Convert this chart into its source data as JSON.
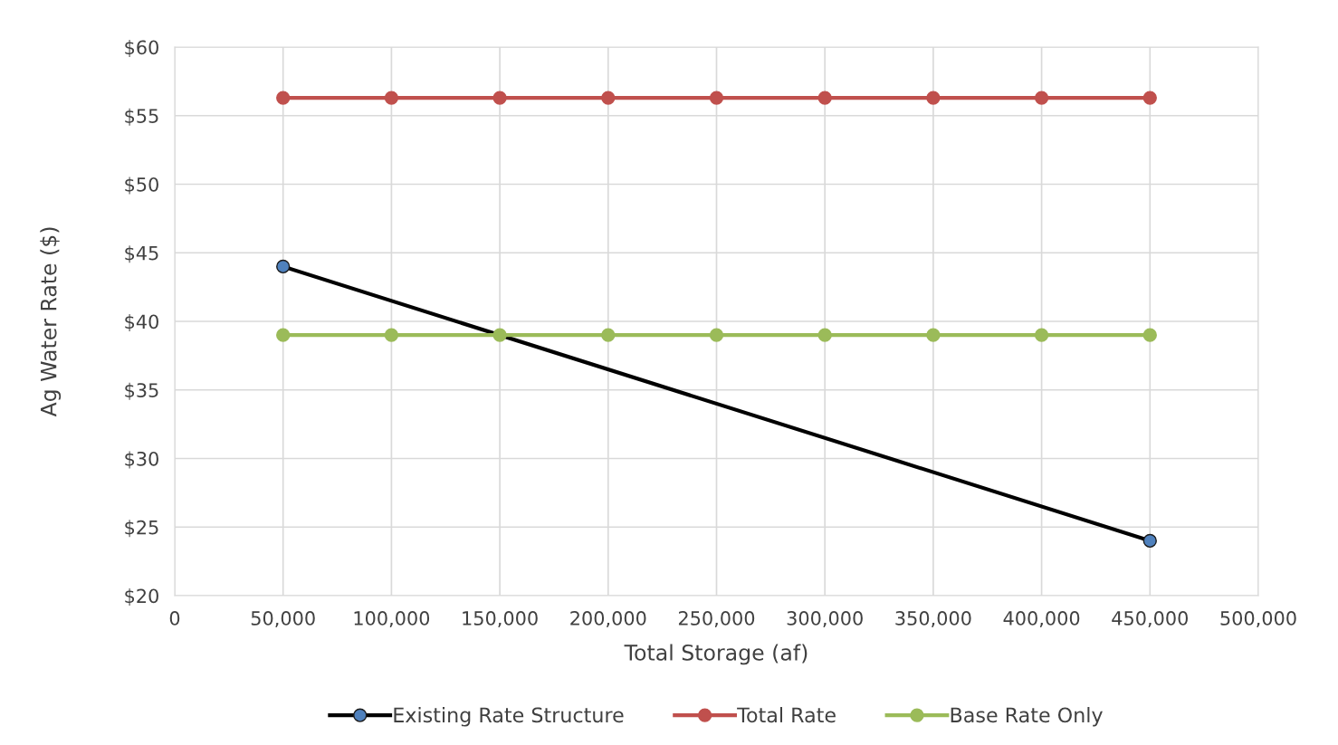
{
  "chart_data": {
    "type": "line",
    "xlabel": "Total Storage (af)",
    "ylabel": "Ag Water Rate ($)",
    "xlim": [
      0,
      500000
    ],
    "xticks": [
      0,
      {
        "value": 50000,
        "label": "50,000"
      },
      {
        "value": 100000,
        "label": "100,000"
      },
      {
        "value": 150000,
        "label": "150,000"
      },
      {
        "value": 200000,
        "label": "200,000"
      },
      {
        "value": 250000,
        "label": "250,000"
      },
      {
        "value": 300000,
        "label": "300,000"
      },
      {
        "value": 350000,
        "label": "350,000"
      },
      {
        "value": 400000,
        "label": "400,000"
      },
      {
        "value": 450000,
        "label": "450,000"
      },
      {
        "value": 500000,
        "label": "500,000"
      }
    ],
    "ylim": [
      20,
      60
    ],
    "yticks": [
      {
        "value": 20,
        "label": "$20"
      },
      {
        "value": 25,
        "label": "$25"
      },
      {
        "value": 30,
        "label": "$30"
      },
      {
        "value": 35,
        "label": "$35"
      },
      {
        "value": 40,
        "label": "$40"
      },
      {
        "value": 45,
        "label": "$45"
      },
      {
        "value": 50,
        "label": "$50"
      },
      {
        "value": 55,
        "label": "$55"
      },
      {
        "value": 60,
        "label": "$60"
      }
    ],
    "grid": true,
    "legend": "bottom",
    "marker": "circle",
    "line_style": "solid",
    "series": [
      {
        "name": "Existing Rate Structure",
        "color": "#000000",
        "x": [
          50000,
          450000
        ],
        "values": [
          44,
          24
        ]
      },
      {
        "name": "Total Rate",
        "color": "#c0504d",
        "x": [
          50000,
          100000,
          150000,
          200000,
          250000,
          300000,
          350000,
          400000,
          450000
        ],
        "values": [
          56.3,
          56.3,
          56.3,
          56.3,
          56.3,
          56.3,
          56.3,
          56.3,
          56.3
        ]
      },
      {
        "name": "Base Rate Only",
        "color": "#9bbb59",
        "x": [
          50000,
          100000,
          150000,
          200000,
          250000,
          300000,
          350000,
          400000,
          450000
        ],
        "values": [
          39,
          39,
          39,
          39,
          39,
          39,
          39,
          39,
          39
        ]
      }
    ]
  }
}
